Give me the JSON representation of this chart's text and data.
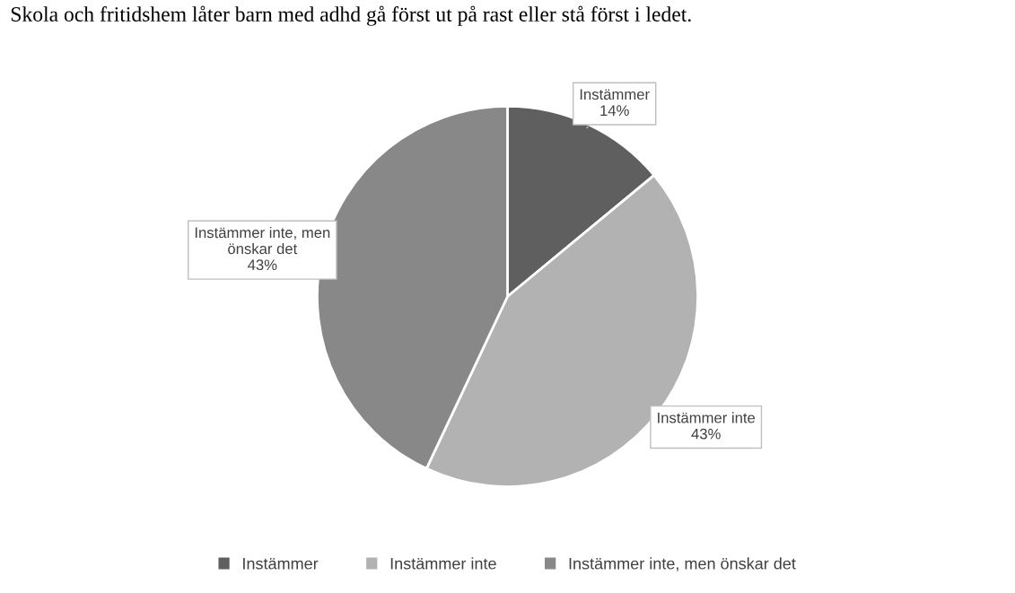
{
  "chart_data": {
    "type": "pie",
    "title": "Skola och fritidshem låter barn med adhd gå först ut på rast eller stå först i ledet.",
    "categories": [
      "Instämmer",
      "Instämmer inte",
      "Instämmer inte, men önskar det"
    ],
    "values": [
      14,
      43,
      43
    ],
    "colors": [
      "#5f5f5f",
      "#b2b2b2",
      "#888888"
    ],
    "value_labels": [
      "14%",
      "43%",
      "43%"
    ],
    "legend": "bottom"
  }
}
